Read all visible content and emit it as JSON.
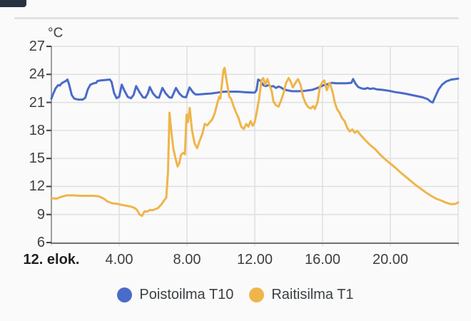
{
  "chart_data": {
    "type": "line",
    "y_unit": "°C",
    "ylim": [
      6,
      27
    ],
    "y_ticks": [
      27,
      24,
      21,
      18,
      15,
      12,
      9,
      6
    ],
    "xlim_hours": [
      0,
      24
    ],
    "x_ticks": [
      {
        "label": "12. elok.",
        "hour": 0,
        "emphasis": true
      },
      {
        "label": "4.00",
        "hour": 4
      },
      {
        "label": "8.00",
        "hour": 8
      },
      {
        "label": "12.00",
        "hour": 12
      },
      {
        "label": "16.00",
        "hour": 16
      },
      {
        "label": "20.00",
        "hour": 20
      }
    ],
    "grid": true,
    "legend_position": "bottom",
    "series": [
      {
        "name": "Poistoilma T10",
        "color": "#4a6bc9",
        "points": [
          [
            0,
            21.4
          ],
          [
            0.1,
            21.9
          ],
          [
            0.25,
            22.5
          ],
          [
            0.4,
            22.85
          ],
          [
            0.5,
            22.8
          ],
          [
            0.6,
            23.05
          ],
          [
            0.75,
            23.2
          ],
          [
            0.85,
            23.3
          ],
          [
            0.95,
            23.45
          ],
          [
            1.05,
            22.9
          ],
          [
            1.2,
            21.8
          ],
          [
            1.35,
            21.4
          ],
          [
            1.6,
            21.3
          ],
          [
            1.85,
            21.3
          ],
          [
            2.0,
            21.5
          ],
          [
            2.15,
            22.4
          ],
          [
            2.3,
            22.9
          ],
          [
            2.5,
            23.05
          ],
          [
            2.65,
            23.1
          ],
          [
            2.72,
            23.3
          ],
          [
            2.9,
            23.35
          ],
          [
            3.2,
            23.4
          ],
          [
            3.45,
            23.45
          ],
          [
            3.55,
            23.2
          ],
          [
            3.7,
            22.0
          ],
          [
            3.85,
            21.45
          ],
          [
            4.0,
            21.6
          ],
          [
            4.15,
            22.9
          ],
          [
            4.3,
            22.3
          ],
          [
            4.5,
            21.6
          ],
          [
            4.7,
            21.45
          ],
          [
            4.85,
            21.8
          ],
          [
            5.0,
            22.75
          ],
          [
            5.2,
            22.1
          ],
          [
            5.4,
            21.55
          ],
          [
            5.55,
            21.5
          ],
          [
            5.7,
            22.0
          ],
          [
            5.8,
            22.65
          ],
          [
            6.0,
            21.95
          ],
          [
            6.2,
            21.55
          ],
          [
            6.35,
            21.5
          ],
          [
            6.55,
            22.55
          ],
          [
            6.75,
            21.95
          ],
          [
            6.95,
            21.55
          ],
          [
            7.1,
            21.5
          ],
          [
            7.35,
            22.55
          ],
          [
            7.55,
            21.95
          ],
          [
            7.75,
            21.6
          ],
          [
            7.95,
            21.55
          ],
          [
            8.15,
            22.6
          ],
          [
            8.35,
            22.1
          ],
          [
            8.5,
            21.85
          ],
          [
            8.7,
            21.85
          ],
          [
            9.0,
            21.9
          ],
          [
            9.4,
            21.95
          ],
          [
            9.8,
            22.05
          ],
          [
            10.2,
            22.15
          ],
          [
            10.6,
            22.15
          ],
          [
            11.0,
            22.15
          ],
          [
            11.4,
            22.1
          ],
          [
            11.8,
            22.05
          ],
          [
            12.0,
            22.05
          ],
          [
            12.1,
            22.3
          ],
          [
            12.2,
            23.45
          ],
          [
            12.35,
            23.3
          ],
          [
            12.5,
            22.85
          ],
          [
            12.65,
            22.75
          ],
          [
            12.8,
            22.85
          ],
          [
            12.95,
            22.7
          ],
          [
            13.1,
            22.75
          ],
          [
            13.25,
            22.55
          ],
          [
            13.4,
            22.7
          ],
          [
            13.55,
            22.6
          ],
          [
            13.7,
            22.4
          ],
          [
            13.9,
            22.3
          ],
          [
            14.2,
            22.2
          ],
          [
            14.6,
            22.2
          ],
          [
            15.0,
            22.25
          ],
          [
            15.4,
            22.35
          ],
          [
            15.7,
            22.55
          ],
          [
            16.0,
            22.8
          ],
          [
            16.3,
            22.95
          ],
          [
            16.55,
            23.1
          ],
          [
            16.8,
            23.05
          ],
          [
            17.1,
            23.05
          ],
          [
            17.4,
            23.05
          ],
          [
            17.7,
            23.1
          ],
          [
            17.8,
            23.5
          ],
          [
            17.95,
            23.0
          ],
          [
            18.1,
            22.65
          ],
          [
            18.3,
            22.5
          ],
          [
            18.5,
            22.45
          ],
          [
            18.65,
            22.55
          ],
          [
            18.8,
            22.45
          ],
          [
            19.0,
            22.5
          ],
          [
            19.2,
            22.4
          ],
          [
            19.5,
            22.35
          ],
          [
            19.9,
            22.25
          ],
          [
            20.3,
            22.1
          ],
          [
            20.7,
            22.0
          ],
          [
            21.1,
            21.85
          ],
          [
            21.5,
            21.7
          ],
          [
            21.9,
            21.55
          ],
          [
            22.2,
            21.35
          ],
          [
            22.4,
            21.05
          ],
          [
            22.5,
            21.0
          ],
          [
            22.65,
            21.6
          ],
          [
            22.85,
            22.4
          ],
          [
            23.05,
            22.9
          ],
          [
            23.3,
            23.25
          ],
          [
            23.6,
            23.45
          ],
          [
            23.85,
            23.5
          ],
          [
            24.0,
            23.55
          ]
        ]
      },
      {
        "name": "Raitisilma T1",
        "color": "#efb54a",
        "points": [
          [
            0,
            10.75
          ],
          [
            0.3,
            10.7
          ],
          [
            0.6,
            10.9
          ],
          [
            0.9,
            11.05
          ],
          [
            1.3,
            11.05
          ],
          [
            1.7,
            11.0
          ],
          [
            2.1,
            11.0
          ],
          [
            2.5,
            11.0
          ],
          [
            2.8,
            10.95
          ],
          [
            3.1,
            10.7
          ],
          [
            3.3,
            10.4
          ],
          [
            3.6,
            10.2
          ],
          [
            3.9,
            10.15
          ],
          [
            4.1,
            10.05
          ],
          [
            4.4,
            9.95
          ],
          [
            4.7,
            9.85
          ],
          [
            4.9,
            9.7
          ],
          [
            5.05,
            9.5
          ],
          [
            5.2,
            9.0
          ],
          [
            5.35,
            8.85
          ],
          [
            5.5,
            9.35
          ],
          [
            5.65,
            9.3
          ],
          [
            5.8,
            9.5
          ],
          [
            5.95,
            9.45
          ],
          [
            6.1,
            9.55
          ],
          [
            6.3,
            9.7
          ],
          [
            6.5,
            10.1
          ],
          [
            6.65,
            10.5
          ],
          [
            6.78,
            10.8
          ],
          [
            6.88,
            13.5
          ],
          [
            6.97,
            19.9
          ],
          [
            7.08,
            17.8
          ],
          [
            7.2,
            16.0
          ],
          [
            7.35,
            14.8
          ],
          [
            7.45,
            14.15
          ],
          [
            7.55,
            14.5
          ],
          [
            7.65,
            15.4
          ],
          [
            7.78,
            15.6
          ],
          [
            7.88,
            15.45
          ],
          [
            7.98,
            19.7
          ],
          [
            8.06,
            18.9
          ],
          [
            8.16,
            20.4
          ],
          [
            8.3,
            18.0
          ],
          [
            8.45,
            16.6
          ],
          [
            8.6,
            16.1
          ],
          [
            8.75,
            16.9
          ],
          [
            8.9,
            17.6
          ],
          [
            9.05,
            18.7
          ],
          [
            9.2,
            18.55
          ],
          [
            9.35,
            18.9
          ],
          [
            9.5,
            19.2
          ],
          [
            9.65,
            19.9
          ],
          [
            9.8,
            21.0
          ],
          [
            9.9,
            21.6
          ],
          [
            9.97,
            21.4
          ],
          [
            10.05,
            22.8
          ],
          [
            10.15,
            24.4
          ],
          [
            10.22,
            24.7
          ],
          [
            10.35,
            23.2
          ],
          [
            10.5,
            21.6
          ],
          [
            10.6,
            21.4
          ],
          [
            10.75,
            20.6
          ],
          [
            10.9,
            19.9
          ],
          [
            11.05,
            19.3
          ],
          [
            11.2,
            18.4
          ],
          [
            11.35,
            18.15
          ],
          [
            11.5,
            18.7
          ],
          [
            11.62,
            18.4
          ],
          [
            11.75,
            19.0
          ],
          [
            11.88,
            18.5
          ],
          [
            12.0,
            18.9
          ],
          [
            12.12,
            20.0
          ],
          [
            12.25,
            21.3
          ],
          [
            12.4,
            23.4
          ],
          [
            12.5,
            23.6
          ],
          [
            12.62,
            22.9
          ],
          [
            12.75,
            23.5
          ],
          [
            12.88,
            22.8
          ],
          [
            13.0,
            22.2
          ],
          [
            13.1,
            21.1
          ],
          [
            13.25,
            20.7
          ],
          [
            13.4,
            20.55
          ],
          [
            13.55,
            21.2
          ],
          [
            13.7,
            22.0
          ],
          [
            13.85,
            23.1
          ],
          [
            14.0,
            23.6
          ],
          [
            14.1,
            23.3
          ],
          [
            14.25,
            22.6
          ],
          [
            14.4,
            23.1
          ],
          [
            14.55,
            23.5
          ],
          [
            14.7,
            22.9
          ],
          [
            14.85,
            21.6
          ],
          [
            15.0,
            20.9
          ],
          [
            15.15,
            20.5
          ],
          [
            15.3,
            20.35
          ],
          [
            15.45,
            20.6
          ],
          [
            15.55,
            20.3
          ],
          [
            15.7,
            21.0
          ],
          [
            15.85,
            22.7
          ],
          [
            16.0,
            23.2
          ],
          [
            16.1,
            23.35
          ],
          [
            16.25,
            22.3
          ],
          [
            16.42,
            23.1
          ],
          [
            16.58,
            22.2
          ],
          [
            16.72,
            21.0
          ],
          [
            16.85,
            20.3
          ],
          [
            17.0,
            19.9
          ],
          [
            17.15,
            19.3
          ],
          [
            17.3,
            19.0
          ],
          [
            17.45,
            18.3
          ],
          [
            17.6,
            17.9
          ],
          [
            17.75,
            18.1
          ],
          [
            17.9,
            17.75
          ],
          [
            18.05,
            17.95
          ],
          [
            18.2,
            17.6
          ],
          [
            18.5,
            17.0
          ],
          [
            18.8,
            16.45
          ],
          [
            19.1,
            16.0
          ],
          [
            19.4,
            15.4
          ],
          [
            19.7,
            14.9
          ],
          [
            20.0,
            14.45
          ],
          [
            20.3,
            14.0
          ],
          [
            20.6,
            13.5
          ],
          [
            20.9,
            13.05
          ],
          [
            21.2,
            12.6
          ],
          [
            21.5,
            12.15
          ],
          [
            21.8,
            11.75
          ],
          [
            22.1,
            11.35
          ],
          [
            22.4,
            11.0
          ],
          [
            22.7,
            10.7
          ],
          [
            23.0,
            10.5
          ],
          [
            23.3,
            10.25
          ],
          [
            23.6,
            10.1
          ],
          [
            23.85,
            10.15
          ],
          [
            24.0,
            10.3
          ]
        ]
      }
    ]
  },
  "colors": {
    "background": "#fafafa",
    "gridline": "#e0e0e0",
    "axis_left": "#9e9e9e",
    "axis_bottom": "#757575",
    "tick_mark": "#424242",
    "label_text": "#3c4043"
  }
}
